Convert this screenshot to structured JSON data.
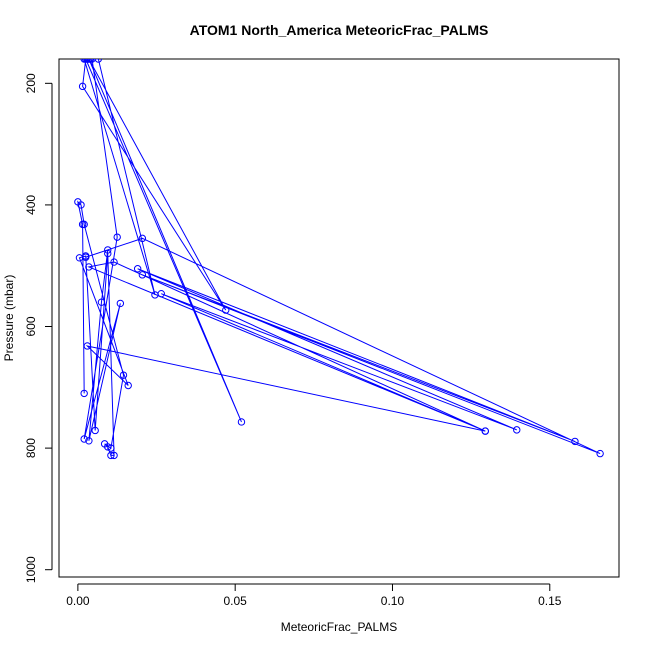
{
  "chart_data": {
    "type": "line",
    "title": "ATOM1 North_America MeteoricFrac_PALMS",
    "xlabel": "MeteoricFrac_PALMS",
    "ylabel": "Pressure (mbar)",
    "xlim": [
      -0.006,
      0.172
    ],
    "ylim": [
      1012,
      160
    ],
    "y_reversed": true,
    "x_ticks": [
      0.0,
      0.05,
      0.1,
      0.15
    ],
    "x_tick_labels": [
      "0.00",
      "0.05",
      "0.10",
      "0.15"
    ],
    "y_ticks": [
      200,
      400,
      600,
      800,
      1000
    ],
    "y_tick_labels": [
      "200",
      "400",
      "600",
      "800",
      "1000"
    ],
    "series": [
      {
        "values": [
          [
            0.003,
            160
          ],
          [
            0.004,
            160
          ],
          [
            0.0035,
            160
          ],
          [
            0.0025,
            160
          ],
          [
            0.0015,
            205
          ],
          [
            0.047,
            573
          ],
          [
            0.0035,
            160
          ],
          [
            0.052,
            757
          ],
          [
            0.0025,
            160
          ],
          [
            0.002,
            160
          ],
          [
            0.0245,
            548
          ],
          [
            0.0065,
            160
          ],
          [
            0.0045,
            160
          ],
          [
            0.0125,
            453
          ],
          [
            0.002,
            785
          ],
          [
            0.0135,
            562
          ],
          [
            0.0035,
            788
          ],
          [
            0.0075,
            560
          ],
          [
            0.0095,
            474
          ],
          [
            0.0025,
            486
          ],
          [
            0.0205,
            455
          ],
          [
            0.166,
            809
          ],
          [
            0.0205,
            515
          ],
          [
            0.158,
            789
          ],
          [
            0.019,
            505
          ],
          [
            0.1395,
            770
          ],
          [
            0.0265,
            546
          ],
          [
            0.1295,
            772
          ],
          [
            0.0035,
            502
          ],
          [
            0.0115,
            494
          ],
          [
            0.1295,
            772
          ],
          [
            0.003,
            632
          ],
          [
            0.016,
            697
          ],
          [
            0.0005,
            487
          ],
          [
            0.0025,
            484
          ],
          [
            0.0055,
            771
          ],
          [
            0.0095,
            480
          ],
          [
            0.0115,
            812
          ],
          [
            0.0105,
            812
          ],
          [
            0.0095,
            798
          ],
          [
            0.0085,
            793
          ],
          [
            0.0105,
            800
          ],
          [
            0.0145,
            680
          ],
          [
            0.002,
            432
          ],
          [
            0.001,
            400
          ],
          [
            0.0,
            395
          ],
          [
            0.0015,
            432
          ],
          [
            0.002,
            710
          ]
        ]
      }
    ],
    "grid": false,
    "legend": "none"
  }
}
